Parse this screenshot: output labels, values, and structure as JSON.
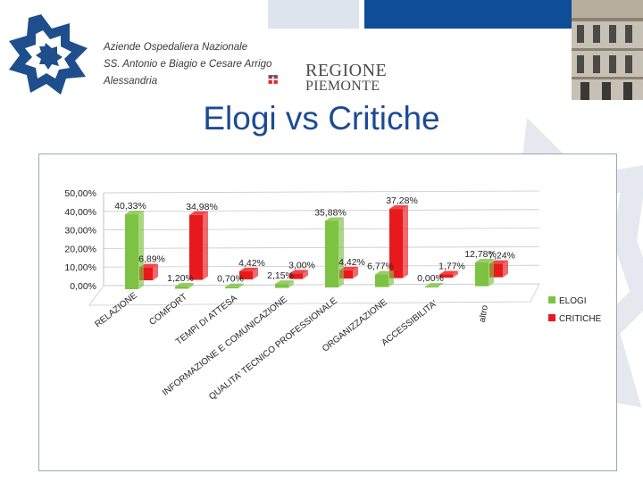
{
  "header": {
    "hospital_lines": [
      "Aziende Ospedaliera Nazionale",
      "SS. Antonio e Biagio e Cesare Arrigo",
      "Alessandria"
    ],
    "regione_line1": "REGIONE",
    "regione_line2": "PIEMONTE"
  },
  "slide_title": "Elogi vs Critiche",
  "colors": {
    "title": "#1c4a96",
    "header_bar_light": "#dde4ee",
    "header_bar_dark": "#0f4d98",
    "elogi": "#7dc242",
    "critiche": "#e8191c"
  },
  "chart_data": {
    "type": "bar",
    "categories": [
      "RELAZIONE",
      "COMFORT",
      "TEMPI DI ATTESA",
      "INFORMAZIONE E COMUNICAZIONE",
      "QUALITA' TECNICO PROFESSIONALE",
      "ORGANIZZAZIONE",
      "ACCESSIBILITA'",
      "altro"
    ],
    "series": [
      {
        "name": "ELOGI",
        "values": [
          40.33,
          1.2,
          0.7,
          2.15,
          35.88,
          6.77,
          0.0,
          12.78
        ],
        "labels": [
          "40,33%",
          "1,20%",
          "0,70%",
          "2,15%",
          "35,88%",
          "6,77%",
          "0,00%",
          "12,78%"
        ]
      },
      {
        "name": "CRITICHE",
        "values": [
          6.89,
          34.98,
          4.42,
          3.0,
          4.42,
          37.28,
          1.77,
          7.24
        ],
        "labels": [
          "6,89%",
          "34,98%",
          "4,42%",
          "3,00%",
          "4,42%",
          "37,28%",
          "1,77%",
          "7,24%"
        ]
      }
    ],
    "yticks": [
      "0,00%",
      "10,00%",
      "20,00%",
      "30,00%",
      "40,00%",
      "50,00%"
    ],
    "ylim": [
      0,
      50
    ],
    "grid": true,
    "legend_position": "right"
  }
}
